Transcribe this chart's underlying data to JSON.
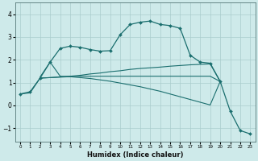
{
  "background_color": "#ceeaea",
  "grid_color": "#aacccc",
  "line_color": "#1a6e6e",
  "xlabel": "Humidex (Indice chaleur)",
  "xlim": [
    -0.5,
    23.5
  ],
  "ylim": [
    -1.6,
    4.5
  ],
  "yticks": [
    -1,
    0,
    1,
    2,
    3,
    4
  ],
  "xtick_labels": [
    "0",
    "1",
    "2",
    "3",
    "4",
    "5",
    "6",
    "7",
    "8",
    "9",
    "10",
    "11",
    "12",
    "13",
    "14",
    "15",
    "16",
    "17",
    "18",
    "19",
    "20",
    "21",
    "22",
    "23"
  ],
  "s1_x": [
    0,
    1,
    2,
    3,
    4,
    5,
    6,
    7,
    8,
    9,
    10,
    11,
    12,
    13,
    14,
    15,
    16,
    17,
    18,
    19,
    20,
    21,
    22,
    23
  ],
  "s1_y": [
    0.5,
    0.6,
    1.2,
    1.9,
    2.5,
    2.6,
    2.55,
    2.45,
    2.38,
    2.4,
    3.1,
    3.55,
    3.65,
    3.7,
    3.55,
    3.5,
    3.38,
    2.2,
    1.9,
    1.85,
    1.05,
    -0.25,
    -1.1,
    -1.25
  ],
  "s2_x": [
    2,
    3,
    4,
    5,
    6,
    7,
    8,
    9,
    10,
    11,
    12,
    13,
    14,
    15,
    16,
    17,
    18,
    19,
    20
  ],
  "s2_y": [
    1.2,
    1.22,
    1.25,
    1.28,
    1.32,
    1.38,
    1.42,
    1.48,
    1.52,
    1.58,
    1.62,
    1.65,
    1.68,
    1.72,
    1.75,
    1.78,
    1.8,
    1.82,
    1.05
  ],
  "s3_x": [
    2,
    3,
    4,
    5,
    6,
    7,
    8,
    9,
    10,
    11,
    12,
    13,
    14,
    15,
    16,
    17,
    18,
    19,
    20
  ],
  "s3_y": [
    1.25,
    1.9,
    1.28,
    1.26,
    1.22,
    1.18,
    1.12,
    1.06,
    0.98,
    0.9,
    0.82,
    0.72,
    0.62,
    0.5,
    0.38,
    0.26,
    0.14,
    0.02,
    1.05
  ],
  "s4_x": [
    0,
    1,
    2,
    3,
    4,
    5,
    6,
    7,
    8,
    9,
    10,
    11,
    12,
    13,
    14,
    15,
    16,
    17,
    18,
    19,
    20
  ],
  "s4_y": [
    0.5,
    0.55,
    1.2,
    1.22,
    1.24,
    1.26,
    1.28,
    1.28,
    1.28,
    1.28,
    1.28,
    1.28,
    1.28,
    1.28,
    1.28,
    1.28,
    1.28,
    1.28,
    1.28,
    1.28,
    1.05
  ]
}
